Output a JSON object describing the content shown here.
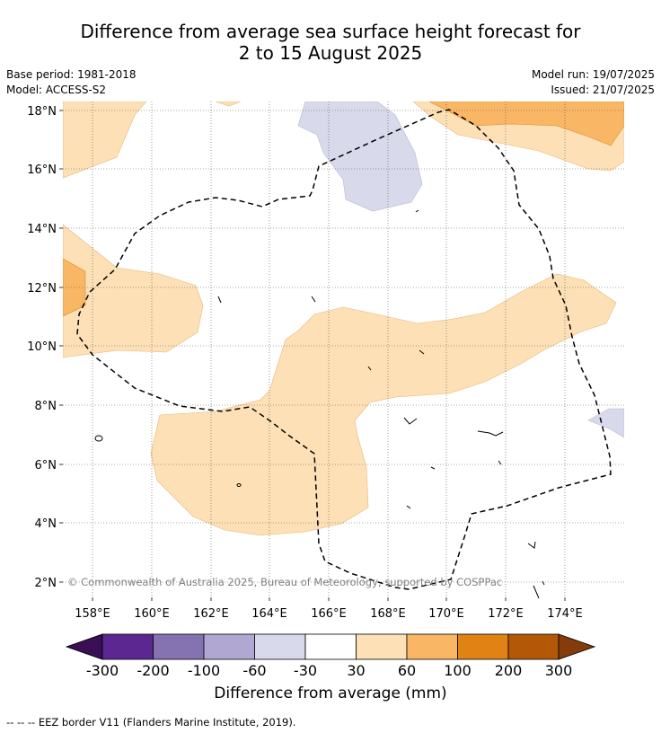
{
  "header": {
    "title_line1": "Difference from average sea surface height forecast for",
    "title_line2": "2 to 15 August 2025",
    "base_period": "Base period: 1981-2018",
    "model": "Model: ACCESS-S2",
    "model_run": "Model run: 19/07/2025",
    "issued": "Issued: 21/07/2025"
  },
  "map": {
    "lat_labels": [
      "18°N",
      "16°N",
      "14°N",
      "12°N",
      "10°N",
      "8°N",
      "6°N",
      "4°N",
      "2°N"
    ],
    "lon_labels": [
      "158°E",
      "160°E",
      "162°E",
      "164°E",
      "166°E",
      "168°E",
      "170°E",
      "172°E",
      "174°E"
    ],
    "copyright": "© Commonwealth of Australia 2025, Bureau of Meteorology, supported by COSPPac",
    "fill_colors": {
      "pos30": "#fde0b5",
      "pos60": "#f9b664",
      "neg30": "#d8d9ea"
    }
  },
  "colorbar": {
    "labels": [
      "-300",
      "-200",
      "-100",
      "-60",
      "-30",
      "30",
      "60",
      "100",
      "200",
      "300"
    ],
    "colors": [
      "#3b0f55",
      "#5b2891",
      "#8473b0",
      "#b0a8d2",
      "#d8d9ea",
      "#ffffff",
      "#fde0b5",
      "#f9b664",
      "#e08214",
      "#b35806",
      "#843c0c"
    ],
    "title": "Difference from average (mm)"
  },
  "footer": {
    "legend": "--  --  -- EEZ border V11 (Flanders Marine Institute, 2019)."
  }
}
